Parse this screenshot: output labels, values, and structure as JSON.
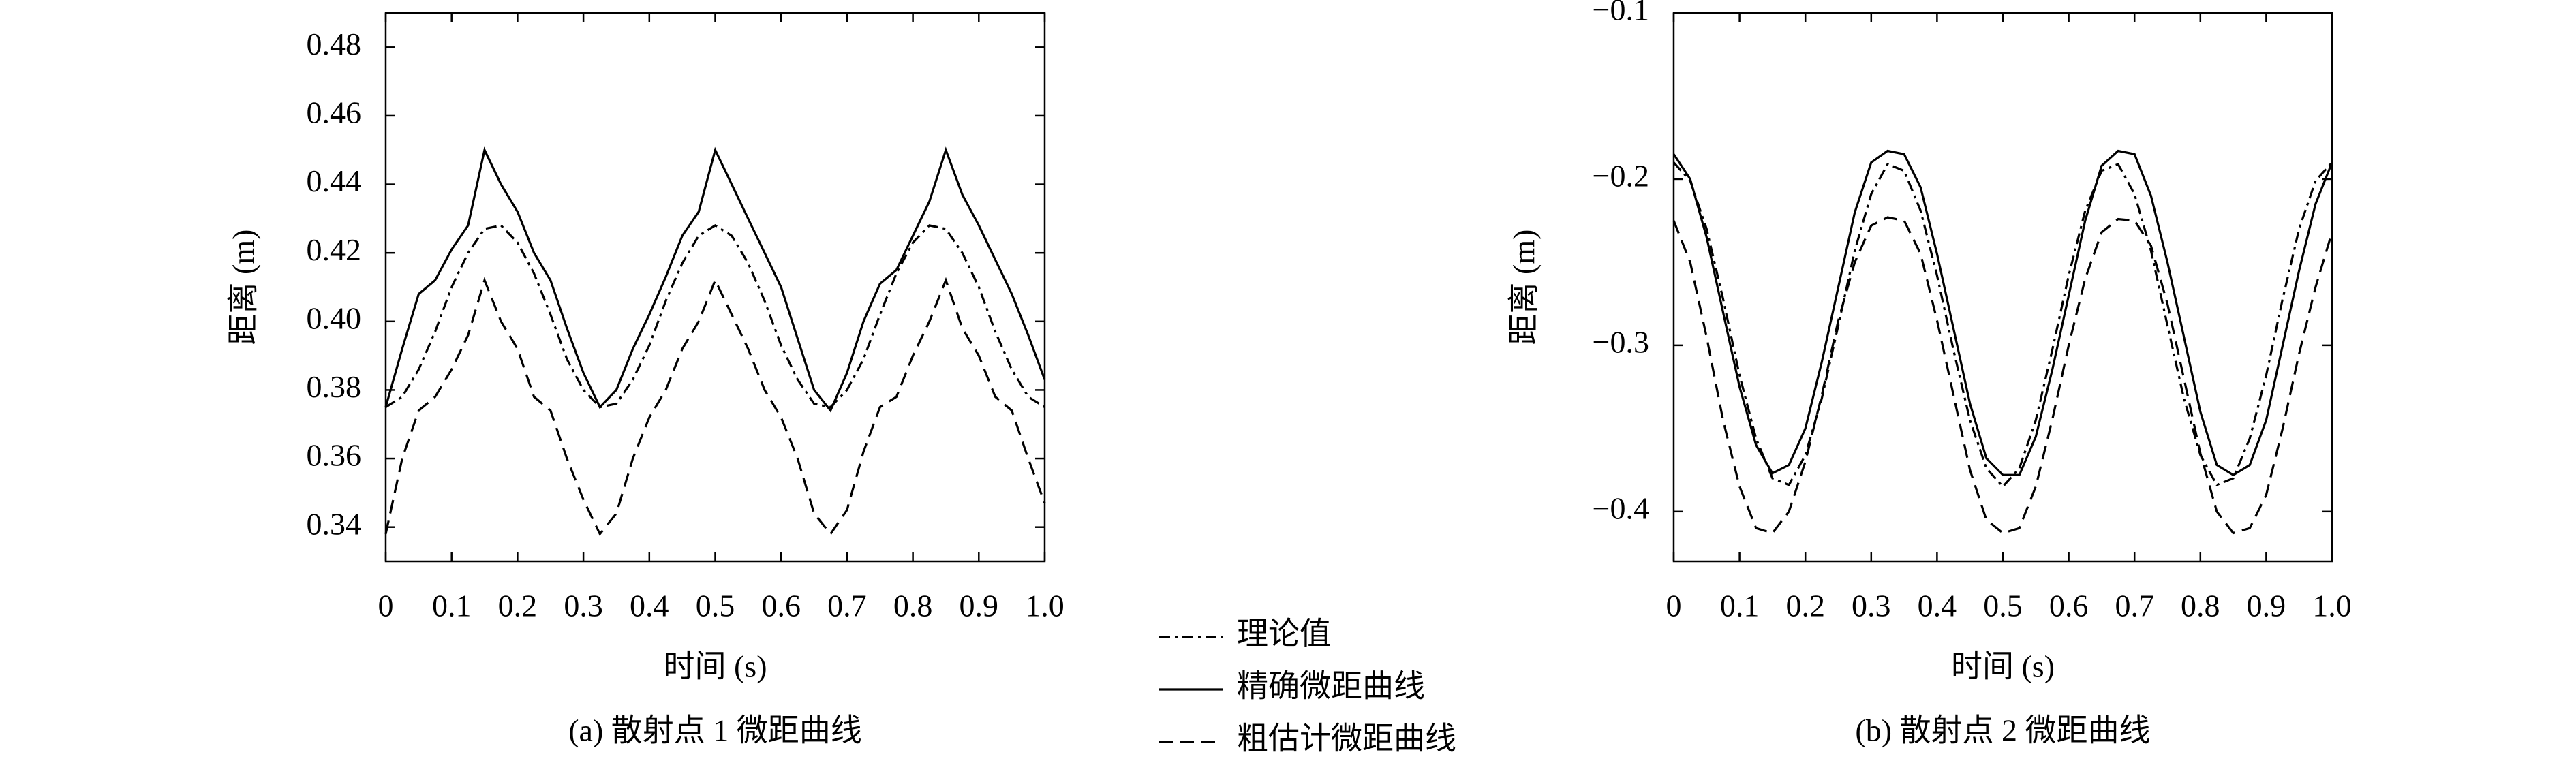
{
  "chart_data": [
    {
      "type": "line",
      "x": [
        0,
        0.025,
        0.05,
        0.075,
        0.1,
        0.125,
        0.15,
        0.175,
        0.2,
        0.225,
        0.25,
        0.275,
        0.3,
        0.325,
        0.35,
        0.375,
        0.4,
        0.425,
        0.45,
        0.475,
        0.5,
        0.525,
        0.55,
        0.575,
        0.6,
        0.625,
        0.65,
        0.675,
        0.7,
        0.725,
        0.75,
        0.775,
        0.8,
        0.825,
        0.85,
        0.875,
        0.9,
        0.925,
        0.95,
        0.975,
        1
      ],
      "series": [
        {
          "name": "理论值",
          "color": "#000000",
          "style": "dashdot",
          "values": [
            0.375,
            0.378,
            0.386,
            0.397,
            0.41,
            0.42,
            0.427,
            0.428,
            0.423,
            0.414,
            0.402,
            0.389,
            0.38,
            0.375,
            0.376,
            0.383,
            0.393,
            0.406,
            0.417,
            0.425,
            0.428,
            0.425,
            0.417,
            0.406,
            0.393,
            0.383,
            0.376,
            0.375,
            0.38,
            0.389,
            0.402,
            0.414,
            0.423,
            0.428,
            0.427,
            0.42,
            0.41,
            0.397,
            0.386,
            0.378,
            0.375
          ]
        },
        {
          "name": "精确微距曲线",
          "color": "#000000",
          "style": "solid",
          "values": [
            0.375,
            0.392,
            0.408,
            0.412,
            0.421,
            0.428,
            0.45,
            0.44,
            0.432,
            0.42,
            0.412,
            0.398,
            0.385,
            0.375,
            0.38,
            0.392,
            0.402,
            0.413,
            0.425,
            0.432,
            0.45,
            0.44,
            0.43,
            0.42,
            0.41,
            0.395,
            0.38,
            0.374,
            0.385,
            0.4,
            0.411,
            0.415,
            0.425,
            0.435,
            0.45,
            0.437,
            0.428,
            0.418,
            0.408,
            0.396,
            0.383
          ]
        },
        {
          "name": "粗估计微距曲线",
          "color": "#000000",
          "style": "dashed",
          "values": [
            0.338,
            0.36,
            0.374,
            0.378,
            0.386,
            0.396,
            0.412,
            0.4,
            0.392,
            0.378,
            0.374,
            0.36,
            0.348,
            0.338,
            0.344,
            0.36,
            0.372,
            0.38,
            0.392,
            0.4,
            0.412,
            0.402,
            0.392,
            0.38,
            0.372,
            0.36,
            0.344,
            0.338,
            0.345,
            0.362,
            0.375,
            0.378,
            0.39,
            0.4,
            0.412,
            0.398,
            0.39,
            0.378,
            0.374,
            0.36,
            0.347
          ]
        }
      ],
      "xlim": [
        0,
        1
      ],
      "xticks": [
        0,
        0.1,
        0.2,
        0.3,
        0.4,
        0.5,
        0.6,
        0.7,
        0.8,
        0.9,
        {
          "value": 1,
          "label": "1.0"
        }
      ],
      "ylim": [
        0.33,
        0.49
      ],
      "yticks": [
        0.34,
        0.36,
        0.38,
        0.4,
        0.42,
        0.44,
        0.46,
        0.48
      ],
      "ytick_labels": [
        "0.34",
        "0.36",
        "0.38",
        "0.40",
        "0.42",
        "0.44",
        "0.46",
        "0.48"
      ],
      "xlabel": "时间 (s)",
      "ylabel": "距离 (m)",
      "caption": "(a) 散射点 1 微距曲线"
    },
    {
      "type": "line",
      "x": [
        0,
        0.025,
        0.05,
        0.075,
        0.1,
        0.125,
        0.15,
        0.175,
        0.2,
        0.225,
        0.25,
        0.275,
        0.3,
        0.325,
        0.35,
        0.375,
        0.4,
        0.425,
        0.45,
        0.475,
        0.5,
        0.525,
        0.55,
        0.575,
        0.6,
        0.625,
        0.65,
        0.675,
        0.7,
        0.725,
        0.75,
        0.775,
        0.8,
        0.825,
        0.85,
        0.875,
        0.9,
        0.925,
        0.95,
        0.975,
        1
      ],
      "series": [
        {
          "color": "#000000",
          "style": "dashdot",
          "values": [
            -0.19,
            -0.201,
            -0.23,
            -0.272,
            -0.318,
            -0.356,
            -0.38,
            -0.384,
            -0.366,
            -0.332,
            -0.288,
            -0.243,
            -0.209,
            -0.191,
            -0.195,
            -0.219,
            -0.258,
            -0.303,
            -0.345,
            -0.374,
            -0.385,
            -0.374,
            -0.345,
            -0.303,
            -0.258,
            -0.219,
            -0.195,
            -0.191,
            -0.209,
            -0.243,
            -0.288,
            -0.332,
            -0.366,
            -0.384,
            -0.38,
            -0.356,
            -0.318,
            -0.272,
            -0.23,
            -0.201,
            -0.19
          ]
        },
        {
          "color": "#000000",
          "style": "solid",
          "values": [
            -0.185,
            -0.2,
            -0.235,
            -0.28,
            -0.325,
            -0.36,
            -0.377,
            -0.372,
            -0.35,
            -0.31,
            -0.265,
            -0.22,
            -0.19,
            -0.183,
            -0.185,
            -0.205,
            -0.245,
            -0.29,
            -0.335,
            -0.368,
            -0.378,
            -0.378,
            -0.355,
            -0.315,
            -0.27,
            -0.225,
            -0.192,
            -0.183,
            -0.185,
            -0.21,
            -0.25,
            -0.295,
            -0.34,
            -0.372,
            -0.378,
            -0.372,
            -0.345,
            -0.3,
            -0.255,
            -0.215,
            -0.19
          ]
        },
        {
          "color": "#000000",
          "style": "dashed",
          "values": [
            -0.225,
            -0.25,
            -0.295,
            -0.345,
            -0.385,
            -0.41,
            -0.413,
            -0.4,
            -0.37,
            -0.33,
            -0.285,
            -0.25,
            -0.228,
            -0.223,
            -0.225,
            -0.245,
            -0.285,
            -0.33,
            -0.375,
            -0.405,
            -0.413,
            -0.41,
            -0.385,
            -0.345,
            -0.3,
            -0.26,
            -0.232,
            -0.224,
            -0.225,
            -0.24,
            -0.275,
            -0.32,
            -0.365,
            -0.4,
            -0.413,
            -0.41,
            -0.39,
            -0.35,
            -0.305,
            -0.265,
            -0.232
          ]
        }
      ],
      "xlim": [
        0,
        1
      ],
      "xticks": [
        0,
        0.1,
        0.2,
        0.3,
        0.4,
        0.5,
        0.6,
        0.7,
        0.8,
        0.9,
        {
          "value": 1,
          "label": "1.0"
        }
      ],
      "ylim": [
        -0.43,
        -0.1
      ],
      "yticks": [
        {
          "value": -0.4,
          "label": "−0.4"
        },
        {
          "value": -0.3,
          "label": "−0.3"
        },
        {
          "value": -0.2,
          "label": "−0.2"
        },
        {
          "value": -0.1,
          "label": "−0.1"
        }
      ],
      "xlabel": "时间 (s)",
      "ylabel": "距离 (m)",
      "caption": "(b) 散射点 2 微距曲线"
    }
  ]
}
